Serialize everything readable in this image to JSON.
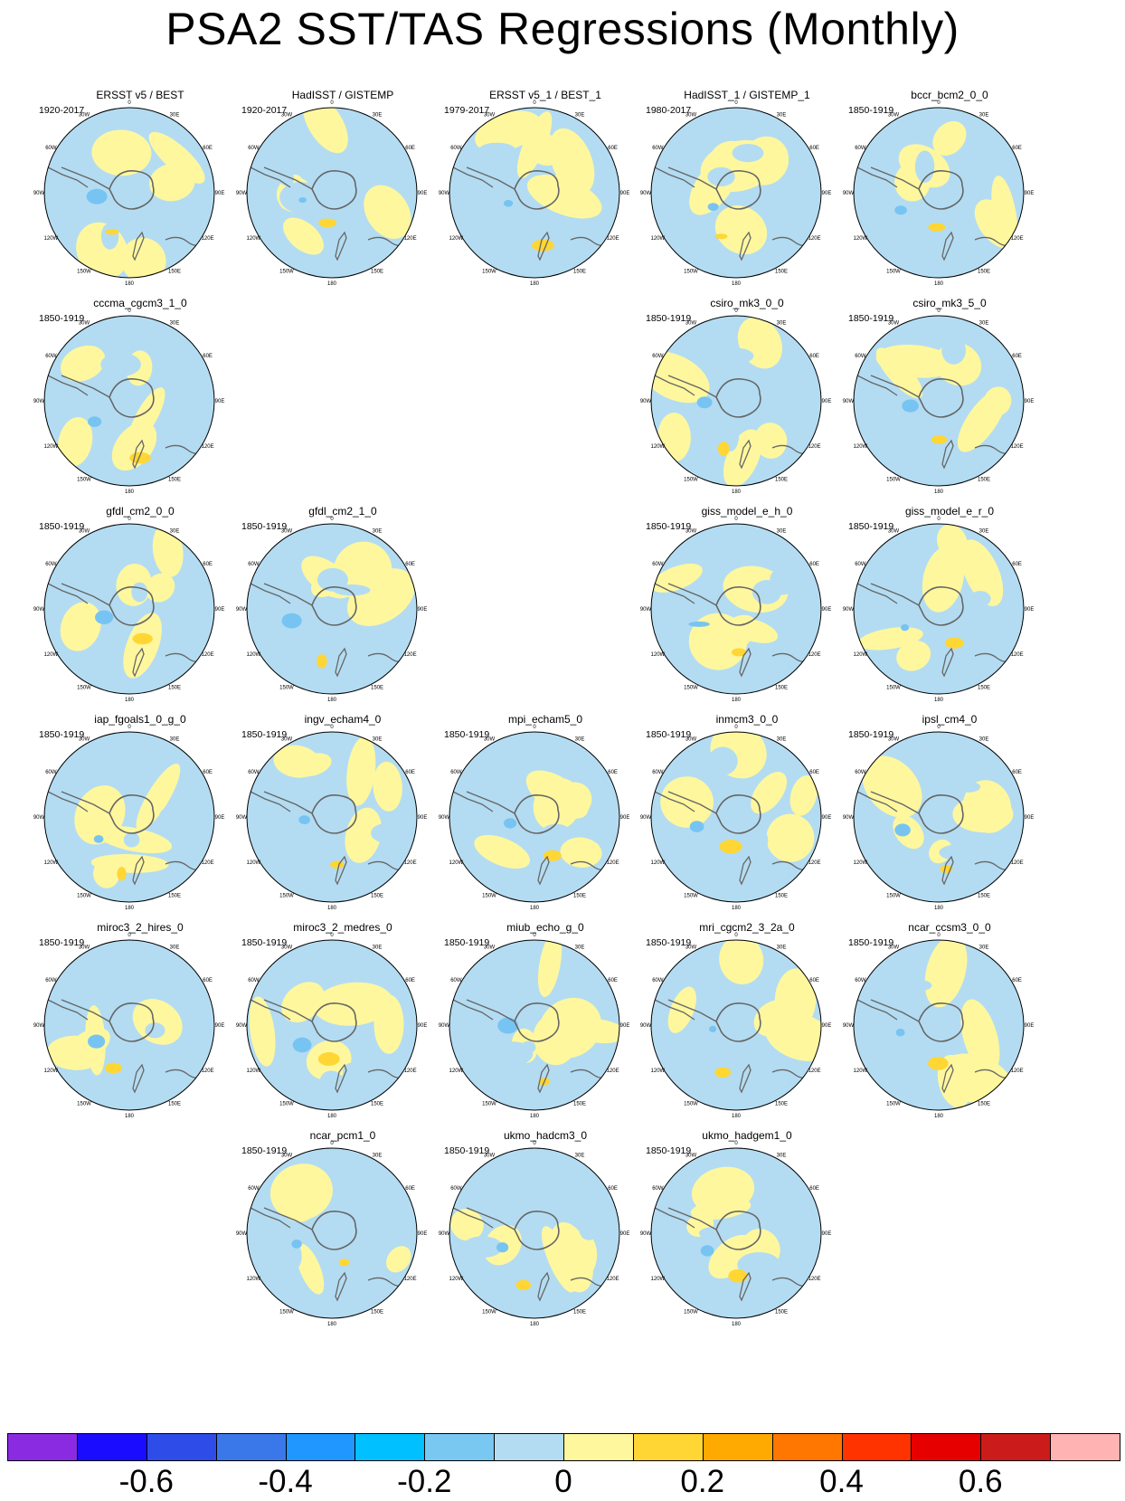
{
  "title": "PSA2 SST/TAS Regressions (Monthly)",
  "longitude_labels": [
    "0",
    "30E",
    "60E",
    "90E",
    "120E",
    "150E",
    "180",
    "150W",
    "120W",
    "90W",
    "60W",
    "30W"
  ],
  "map_colors": {
    "negative": "#b3dcf2",
    "positive": "#fff79e",
    "strong_negative": "#77c4f2",
    "strong_positive": "#ffd633",
    "coast": "#666666",
    "border": "#000000"
  },
  "panels": [
    {
      "title": "ERSST v5 / BEST",
      "period": "1920-2017",
      "row": 0,
      "col": 0
    },
    {
      "title": "HadISST / GISTEMP",
      "period": "1920-2017",
      "row": 0,
      "col": 1
    },
    {
      "title": "ERSST v5_1 / BEST_1",
      "period": "1979-2017",
      "row": 0,
      "col": 2
    },
    {
      "title": "HadISST_1 / GISTEMP_1",
      "period": "1980-2017",
      "row": 0,
      "col": 3
    },
    {
      "title": "bccr_bcm2_0_0",
      "period": "1850-1919",
      "row": 0,
      "col": 4
    },
    {
      "title": "cccma_cgcm3_1_0",
      "period": "1850-1919",
      "row": 1,
      "col": 0
    },
    {
      "title": "csiro_mk3_0_0",
      "period": "1850-1919",
      "row": 1,
      "col": 3
    },
    {
      "title": "csiro_mk3_5_0",
      "period": "1850-1919",
      "row": 1,
      "col": 4
    },
    {
      "title": "gfdl_cm2_0_0",
      "period": "1850-1919",
      "row": 2,
      "col": 0
    },
    {
      "title": "gfdl_cm2_1_0",
      "period": "1850-1919",
      "row": 2,
      "col": 1
    },
    {
      "title": "giss_model_e_h_0",
      "period": "1850-1919",
      "row": 2,
      "col": 3
    },
    {
      "title": "giss_model_e_r_0",
      "period": "1850-1919",
      "row": 2,
      "col": 4
    },
    {
      "title": "iap_fgoals1_0_g_0",
      "period": "1850-1919",
      "row": 3,
      "col": 0
    },
    {
      "title": "ingv_echam4_0",
      "period": "1850-1919",
      "row": 3,
      "col": 1
    },
    {
      "title": "mpi_echam5_0",
      "period": "1850-1919",
      "row": 3,
      "col": 2
    },
    {
      "title": "inmcm3_0_0",
      "period": "1850-1919",
      "row": 3,
      "col": 3
    },
    {
      "title": "ipsl_cm4_0",
      "period": "1850-1919",
      "row": 3,
      "col": 4
    },
    {
      "title": "miroc3_2_hires_0",
      "period": "1850-1919",
      "row": 4,
      "col": 0
    },
    {
      "title": "miroc3_2_medres_0",
      "period": "1850-1919",
      "row": 4,
      "col": 1
    },
    {
      "title": "miub_echo_g_0",
      "period": "1850-1919",
      "row": 4,
      "col": 2
    },
    {
      "title": "mri_cgcm2_3_2a_0",
      "period": "1850-1919",
      "row": 4,
      "col": 3
    },
    {
      "title": "ncar_ccsm3_0_0",
      "period": "1850-1919",
      "row": 4,
      "col": 4
    },
    {
      "title": "ncar_pcm1_0",
      "period": "1850-1919",
      "row": 5,
      "col": 1
    },
    {
      "title": "ukmo_hadcm3_0",
      "period": "1850-1919",
      "row": 5,
      "col": 2
    },
    {
      "title": "ukmo_hadgem1_0",
      "period": "1850-1919",
      "row": 5,
      "col": 3
    }
  ],
  "colorbar": {
    "colors": [
      "#8a2be2",
      "#1a0dff",
      "#2e4de8",
      "#3a78ea",
      "#2096ff",
      "#00c0ff",
      "#78c8f2",
      "#b3dcf2",
      "#fff79e",
      "#ffd633",
      "#ffaa00",
      "#ff7700",
      "#ff3300",
      "#e60000",
      "#cc1b1b",
      "#ffb3b3"
    ],
    "labels": [
      "-0.6",
      "-0.4",
      "-0.2",
      "0",
      "0.2",
      "0.4",
      "0.6"
    ],
    "label_bins": [
      2,
      4,
      6,
      8,
      10,
      12,
      14
    ]
  }
}
